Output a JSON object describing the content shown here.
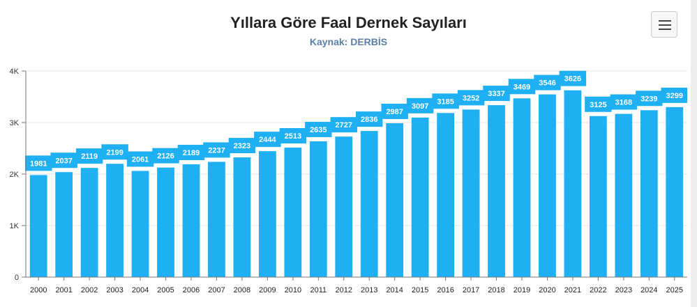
{
  "chart_data": {
    "type": "bar",
    "title": "Yıllara Göre Faal Dernek Sayıları",
    "subtitle": "Kaynak: DERBİS",
    "xlabel": "",
    "ylabel": "",
    "categories": [
      "2000",
      "2001",
      "2002",
      "2003",
      "2004",
      "2005",
      "2006",
      "2007",
      "2008",
      "2009",
      "2010",
      "2011",
      "2012",
      "2013",
      "2014",
      "2015",
      "2016",
      "2017",
      "2018",
      "2019",
      "2020",
      "2021",
      "2022",
      "2023",
      "2024",
      "2025"
    ],
    "values": [
      1981,
      2037,
      2119,
      2199,
      2061,
      2126,
      2189,
      2237,
      2323,
      2444,
      2513,
      2635,
      2727,
      2836,
      2987,
      3097,
      3185,
      3252,
      3337,
      3469,
      3546,
      3626,
      3125,
      3168,
      3239,
      3299
    ],
    "ylim": [
      0,
      4000
    ],
    "yticks": [
      0,
      1000,
      2000,
      3000,
      4000
    ],
    "ytick_labels": [
      "0",
      "1K",
      "2K",
      "3K",
      "4K"
    ],
    "grid": true,
    "legend": "none",
    "bar_color": "#1eb0f2",
    "label_color": "#ffffff"
  },
  "menu": {
    "icon": "hamburger-menu-icon"
  }
}
